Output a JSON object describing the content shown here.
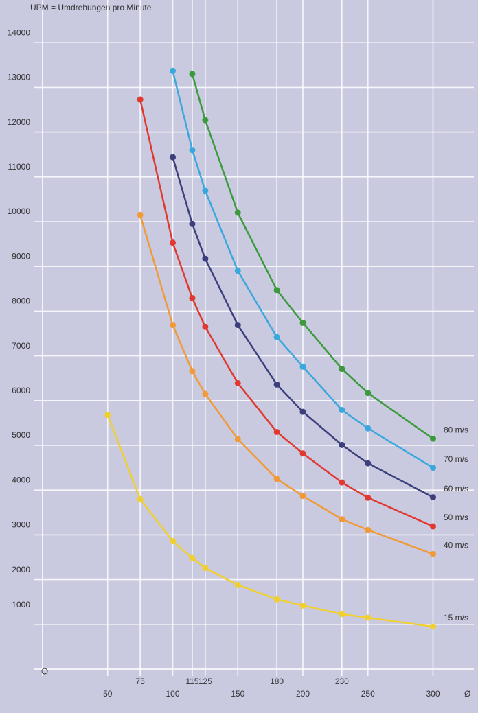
{
  "chart_data": {
    "type": "line",
    "y_label": "UPM = Umdrehungen pro Minute",
    "x_label": "Ø",
    "x": [
      50,
      75,
      100,
      115,
      125,
      150,
      180,
      200,
      230,
      250,
      300
    ],
    "xlim": [
      0,
      335
    ],
    "xticks": [
      50,
      75,
      100,
      115,
      125,
      150,
      180,
      200,
      230,
      250,
      300
    ],
    "ylim": [
      0,
      14900
    ],
    "yticks": [
      1000,
      2000,
      3000,
      4000,
      5000,
      6000,
      7000,
      8000,
      9000,
      10000,
      11000,
      12000,
      13000,
      14000
    ],
    "grid": true,
    "series": [
      {
        "name": "80 m/s",
        "color": "#3a9a3c",
        "values": [
          null,
          null,
          null,
          13300,
          12270,
          10200,
          8470,
          7740,
          6710,
          6170,
          5150
        ]
      },
      {
        "name": "70 m/s",
        "color": "#3aa8dc",
        "values": [
          null,
          null,
          13370,
          11600,
          10690,
          8900,
          7420,
          6760,
          5790,
          5380,
          4500
        ]
      },
      {
        "name": "60 m/s",
        "color": "#3c3f7c",
        "values": [
          null,
          null,
          11440,
          9950,
          9170,
          7690,
          6360,
          5750,
          5010,
          4600,
          3840
        ]
      },
      {
        "name": "50 m/s",
        "color": "#e03a30",
        "values": [
          null,
          12730,
          9530,
          8290,
          7650,
          6390,
          5300,
          4820,
          4170,
          3830,
          3190
        ]
      },
      {
        "name": "40 m/s",
        "color": "#f09a38",
        "values": [
          null,
          10150,
          7690,
          6660,
          6150,
          5140,
          4250,
          3870,
          3350,
          3110,
          2570
        ]
      },
      {
        "name": "15 m/s",
        "color": "#f0d030",
        "values": [
          5680,
          3800,
          2860,
          2480,
          2260,
          1880,
          1560,
          1420,
          1230,
          1150,
          950
        ]
      }
    ]
  }
}
